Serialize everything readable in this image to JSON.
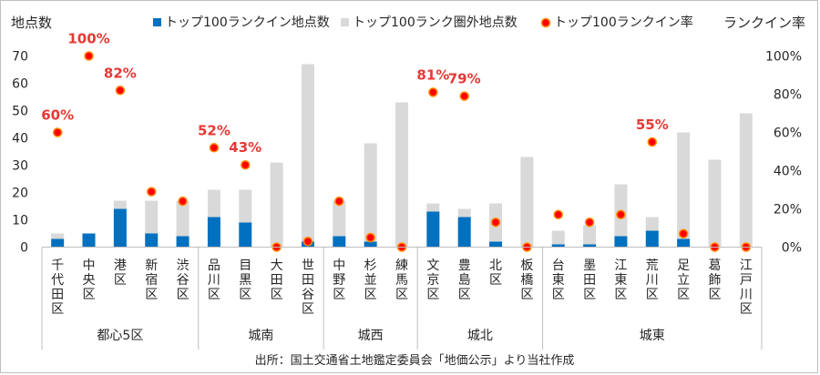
{
  "chart_data": {
    "type": "bar",
    "subtype": "stacked-bar-with-secondary-scatter",
    "y_label_left": "地点数",
    "y_label_right": "ランクイン率",
    "ylim_left": [
      0,
      70
    ],
    "ylim_right": [
      0,
      1.0
    ],
    "left_ticks": [
      "0",
      "10",
      "20",
      "30",
      "40",
      "50",
      "60",
      "70"
    ],
    "right_ticks": [
      "0%",
      "20%",
      "40%",
      "60%",
      "80%",
      "100%"
    ],
    "legend": {
      "inside": "トップ100ランクイン地点数",
      "outside": "トップ100ランク圏外地点数",
      "rate": "トップ100ランクイン率"
    },
    "colors": {
      "inside": "#0070c0",
      "outside": "#d9d9d9",
      "rate": "#ff0000",
      "label": "#e53935"
    },
    "categories": [
      {
        "name": "千代田区",
        "chars": [
          "千",
          "代",
          "田",
          "区"
        ],
        "inside": 3,
        "outside": 2,
        "rate": 0.6,
        "label": "60%"
      },
      {
        "name": "中央区",
        "chars": [
          "中",
          "央",
          "区"
        ],
        "inside": 5,
        "outside": 0,
        "rate": 1.0,
        "label": "100%"
      },
      {
        "name": "港区",
        "chars": [
          "港",
          "区"
        ],
        "inside": 14,
        "outside": 3,
        "rate": 0.82,
        "label": "82%"
      },
      {
        "name": "新宿区",
        "chars": [
          "新",
          "宿",
          "区"
        ],
        "inside": 5,
        "outside": 12,
        "rate": 0.29,
        "label": ""
      },
      {
        "name": "渋谷区",
        "chars": [
          "渋",
          "谷",
          "区"
        ],
        "inside": 4,
        "outside": 13,
        "rate": 0.24,
        "label": ""
      },
      {
        "name": "品川区",
        "chars": [
          "品",
          "川",
          "区"
        ],
        "inside": 11,
        "outside": 10,
        "rate": 0.52,
        "label": "52%"
      },
      {
        "name": "目黒区",
        "chars": [
          "目",
          "黒",
          "区"
        ],
        "inside": 9,
        "outside": 12,
        "rate": 0.43,
        "label": "43%"
      },
      {
        "name": "大田区",
        "chars": [
          "大",
          "田",
          "区"
        ],
        "inside": 0,
        "outside": 31,
        "rate": 0.0,
        "label": ""
      },
      {
        "name": "世田谷区",
        "chars": [
          "世",
          "田",
          "谷",
          "区"
        ],
        "inside": 2,
        "outside": 65,
        "rate": 0.03,
        "label": ""
      },
      {
        "name": "中野区",
        "chars": [
          "中",
          "野",
          "区"
        ],
        "inside": 4,
        "outside": 13,
        "rate": 0.24,
        "label": ""
      },
      {
        "name": "杉並区",
        "chars": [
          "杉",
          "並",
          "区"
        ],
        "inside": 2,
        "outside": 36,
        "rate": 0.05,
        "label": ""
      },
      {
        "name": "練馬区",
        "chars": [
          "練",
          "馬",
          "区"
        ],
        "inside": 0,
        "outside": 53,
        "rate": 0.0,
        "label": ""
      },
      {
        "name": "文京区",
        "chars": [
          "文",
          "京",
          "区"
        ],
        "inside": 13,
        "outside": 3,
        "rate": 0.81,
        "label": "81%"
      },
      {
        "name": "豊島区",
        "chars": [
          "豊",
          "島",
          "区"
        ],
        "inside": 11,
        "outside": 3,
        "rate": 0.79,
        "label": "79%"
      },
      {
        "name": "北区",
        "chars": [
          "北",
          "区"
        ],
        "inside": 2,
        "outside": 14,
        "rate": 0.13,
        "label": ""
      },
      {
        "name": "板橋区",
        "chars": [
          "板",
          "橋",
          "区"
        ],
        "inside": 0,
        "outside": 33,
        "rate": 0.0,
        "label": ""
      },
      {
        "name": "台東区",
        "chars": [
          "台",
          "東",
          "区"
        ],
        "inside": 1,
        "outside": 5,
        "rate": 0.17,
        "label": ""
      },
      {
        "name": "墨田区",
        "chars": [
          "墨",
          "田",
          "区"
        ],
        "inside": 1,
        "outside": 7,
        "rate": 0.13,
        "label": ""
      },
      {
        "name": "江東区",
        "chars": [
          "江",
          "東",
          "区"
        ],
        "inside": 4,
        "outside": 19,
        "rate": 0.17,
        "label": ""
      },
      {
        "name": "荒川区",
        "chars": [
          "荒",
          "川",
          "区"
        ],
        "inside": 6,
        "outside": 5,
        "rate": 0.55,
        "label": "55%"
      },
      {
        "name": "足立区",
        "chars": [
          "足",
          "立",
          "区"
        ],
        "inside": 3,
        "outside": 39,
        "rate": 0.07,
        "label": ""
      },
      {
        "name": "葛飾区",
        "chars": [
          "葛",
          "飾",
          "区"
        ],
        "inside": 0,
        "outside": 32,
        "rate": 0.0,
        "label": ""
      },
      {
        "name": "江戸川区",
        "chars": [
          "江",
          "戸",
          "川",
          "区"
        ],
        "inside": 0,
        "outside": 49,
        "rate": 0.0,
        "label": ""
      }
    ],
    "groups": [
      {
        "name": "都心5区",
        "start": 0,
        "end": 4
      },
      {
        "name": "城南",
        "start": 5,
        "end": 8
      },
      {
        "name": "城西",
        "start": 9,
        "end": 11
      },
      {
        "name": "城北",
        "start": 12,
        "end": 15
      },
      {
        "name": "城東",
        "start": 16,
        "end": 22
      }
    ],
    "source": "出所：国土交通省土地鑑定委員会「地価公示」より当社作成"
  }
}
